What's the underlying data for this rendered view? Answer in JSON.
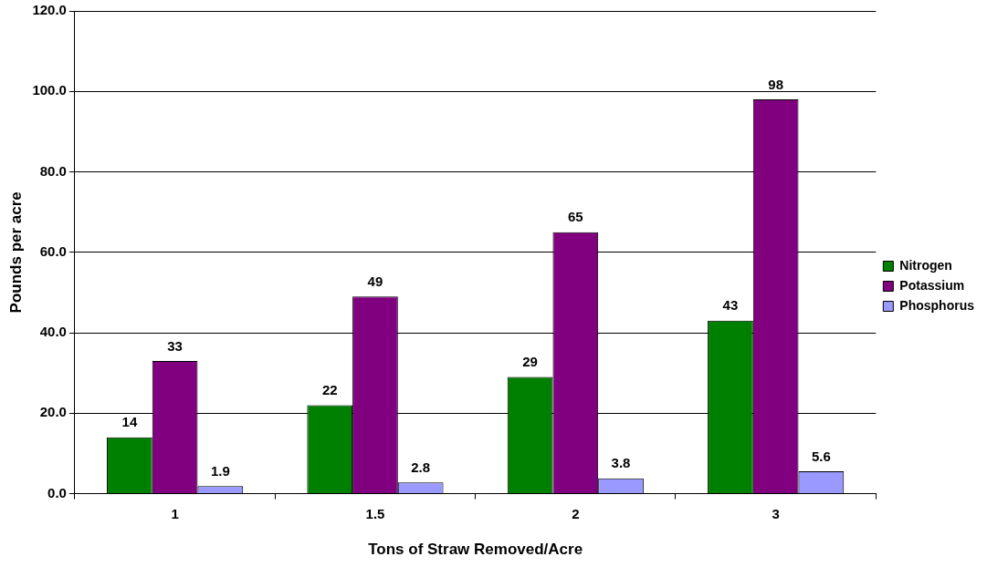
{
  "chart_data": {
    "type": "bar",
    "xlabel": "Tons of Straw Removed/Acre",
    "ylabel": "Pounds per acre",
    "categories": [
      "1",
      "1.5",
      "2",
      "3"
    ],
    "series": [
      {
        "name": "Nitrogen",
        "color": "#008000",
        "values": [
          14,
          22,
          29,
          43
        ]
      },
      {
        "name": "Potassium",
        "color": "#800080",
        "values": [
          33,
          49,
          65,
          98
        ]
      },
      {
        "name": "Phosphorus",
        "color": "#9999ff",
        "values": [
          1.9,
          2.8,
          3.8,
          5.6
        ]
      }
    ],
    "ylim": [
      0,
      120
    ],
    "yticks": [
      {
        "value": 0,
        "label": "0.0"
      },
      {
        "value": 20,
        "label": "20.0"
      },
      {
        "value": 40,
        "label": "40.0"
      },
      {
        "value": 60,
        "label": "60.0"
      },
      {
        "value": 80,
        "label": "80.0"
      },
      {
        "value": 100,
        "label": "100.0"
      },
      {
        "value": 120,
        "label": "120.0"
      }
    ],
    "grid": "y",
    "legend": "right",
    "data_labels": true
  }
}
